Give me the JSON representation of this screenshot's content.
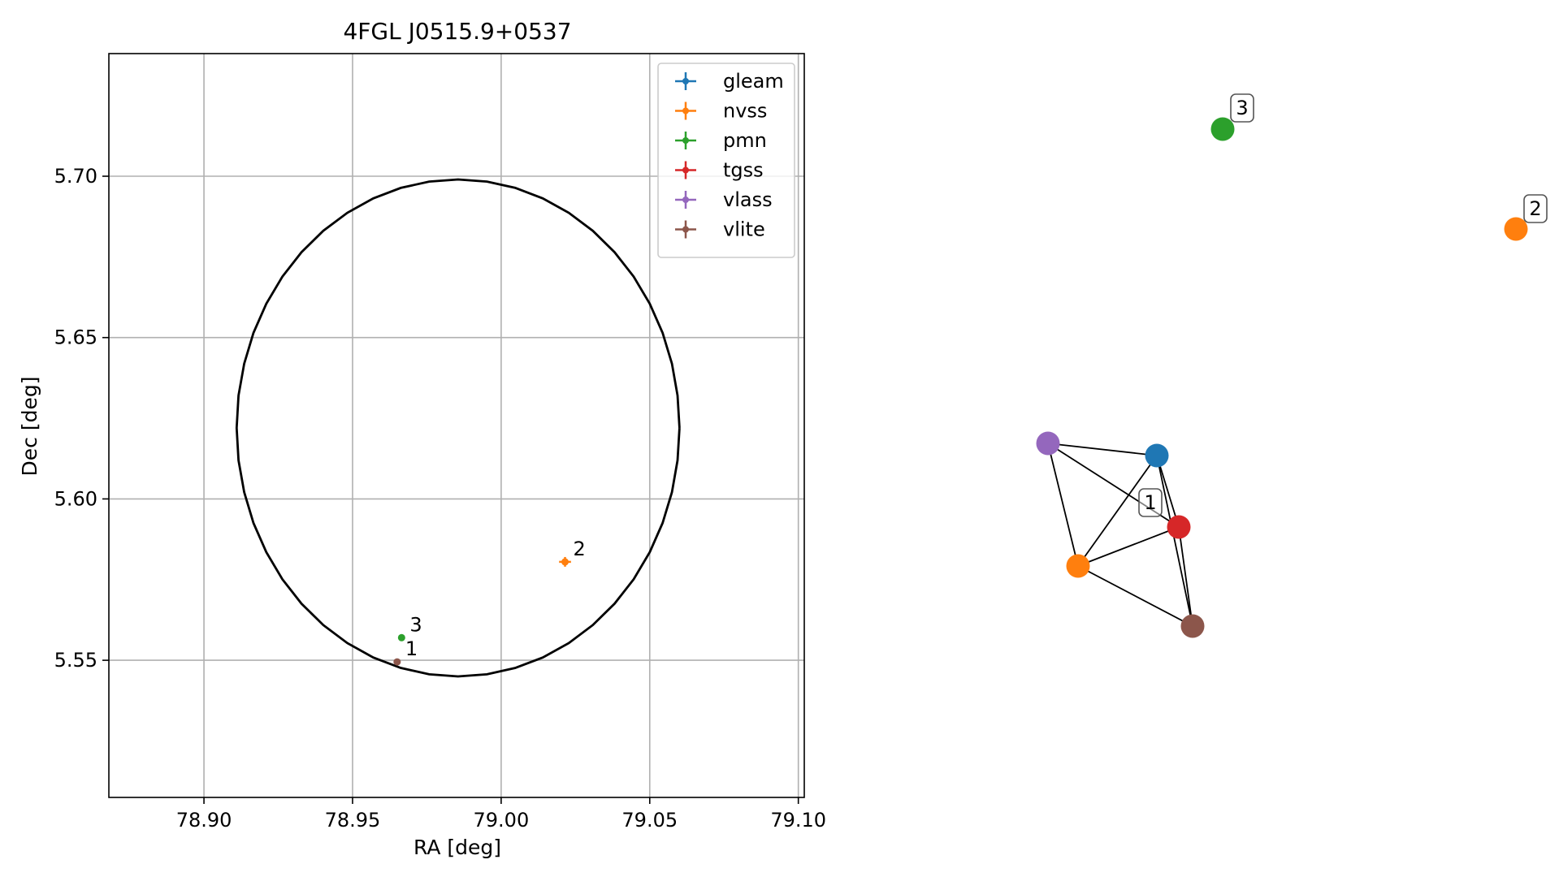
{
  "chart_data": [
    {
      "type": "scatter",
      "title": "4FGL J0515.9+0537",
      "xlabel": "RA [deg]",
      "ylabel": "Dec [deg]",
      "xlim": [
        78.868,
        79.102
      ],
      "ylim": [
        5.5075,
        5.738
      ],
      "xticks": [
        78.9,
        78.95,
        79.0,
        79.05,
        79.1
      ],
      "xtick_labels": [
        "78.90",
        "78.95",
        "79.00",
        "79.05",
        "79.10"
      ],
      "yticks": [
        5.55,
        5.6,
        5.65,
        5.7
      ],
      "ytick_labels": [
        "5.55",
        "5.60",
        "5.65",
        "5.70"
      ],
      "grid": true,
      "legend_position": "top-right",
      "ellipse": {
        "center_ra": 78.9855,
        "center_dec": 5.622,
        "semi_axis_ra": 0.0745,
        "semi_axis_dec": 0.077,
        "color": "#000000"
      },
      "series": [
        {
          "name": "gleam",
          "color": "#1f77b4",
          "points": []
        },
        {
          "name": "nvss",
          "color": "#ff7f0e",
          "points": [
            {
              "ra": 79.0215,
              "dec": 5.5805,
              "xerr": 0.002,
              "yerr": 0.0015,
              "label": "2"
            }
          ]
        },
        {
          "name": "pmn",
          "color": "#2ca02c",
          "points": [
            {
              "ra": 78.9665,
              "dec": 5.557,
              "xerr": 0,
              "yerr": 0,
              "label": "3"
            }
          ]
        },
        {
          "name": "tgss",
          "color": "#d62728",
          "points": []
        },
        {
          "name": "vlass",
          "color": "#9467bd",
          "points": []
        },
        {
          "name": "vlite",
          "color": "#8c564b",
          "points": [
            {
              "ra": 78.965,
              "dec": 5.5495,
              "xerr": 0,
              "yerr": 0,
              "label": "1"
            }
          ]
        }
      ]
    },
    {
      "type": "network",
      "nodes": [
        {
          "id": "gleam",
          "color": "#1f77b4"
        },
        {
          "id": "nvss",
          "color": "#ff7f0e"
        },
        {
          "id": "tgss",
          "color": "#d62728"
        },
        {
          "id": "vlass",
          "color": "#9467bd"
        },
        {
          "id": "vlite",
          "color": "#8c564b"
        },
        {
          "id": "pmn",
          "color": "#2ca02c"
        },
        {
          "id": "nvss-2",
          "color": "#ff7f0e"
        }
      ],
      "edges": [
        [
          "vlass",
          "gleam"
        ],
        [
          "vlass",
          "tgss"
        ],
        [
          "vlass",
          "nvss"
        ],
        [
          "gleam",
          "nvss"
        ],
        [
          "gleam",
          "tgss"
        ],
        [
          "gleam",
          "vlite"
        ],
        [
          "nvss",
          "tgss"
        ],
        [
          "nvss",
          "vlite"
        ],
        [
          "tgss",
          "vlite"
        ]
      ],
      "group_labels": [
        {
          "text": "1",
          "node": "tgss"
        },
        {
          "text": "2",
          "node": "nvss-2"
        },
        {
          "text": "3",
          "node": "pmn"
        }
      ]
    }
  ]
}
